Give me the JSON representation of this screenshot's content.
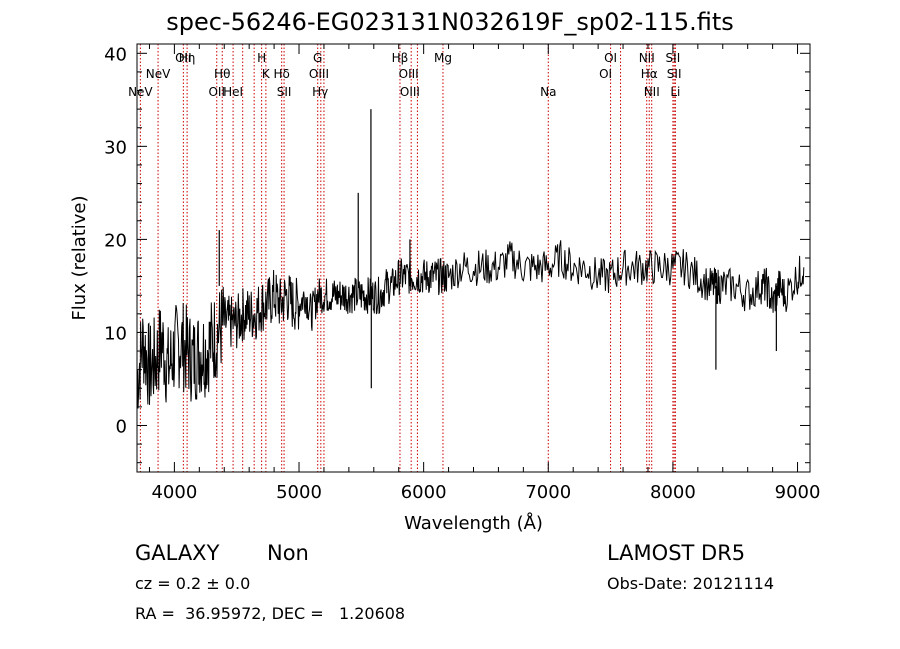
{
  "title": "spec-56246-EG023131N032619F_sp02-115.fits",
  "chart_data": {
    "type": "line",
    "title": "spec-56246-EG023131N032619F_sp02-115.fits",
    "xlabel": "Wavelength (Å)",
    "ylabel": "Flux (relative)",
    "xlim": [
      3700,
      9100
    ],
    "ylim": [
      -5,
      41
    ],
    "xticks": [
      4000,
      5000,
      6000,
      7000,
      8000,
      9000
    ],
    "yticks": [
      0,
      10,
      20,
      30,
      40
    ],
    "grid": false,
    "series": [
      {
        "x": [
          3700,
          3750,
          3800,
          3850,
          3900,
          3950,
          4000,
          4050,
          4100,
          4150,
          4200,
          4250,
          4300,
          4350,
          4400,
          4450,
          4500,
          4550,
          4600,
          4650,
          4700,
          4750,
          4800,
          4850,
          4900,
          4950,
          5000,
          5050,
          5100,
          5150,
          5200,
          5250,
          5300,
          5350,
          5400,
          5450,
          5500,
          5550,
          5600,
          5650,
          5700,
          5750,
          5800,
          5850,
          5900,
          5950,
          6000,
          6050,
          6100,
          6150,
          6200,
          6300,
          6400,
          6500,
          6600,
          6700,
          6800,
          6900,
          7000,
          7100,
          7200,
          7300,
          7400,
          7500,
          7600,
          7700,
          7800,
          7900,
          8000,
          8100,
          8200,
          8300,
          8350,
          8400,
          8500,
          8600,
          8700,
          8750,
          8800,
          8850,
          8900,
          9000,
          9050
        ],
        "y": [
          5,
          9,
          6,
          7,
          9,
          6,
          8,
          9,
          8,
          7,
          8,
          8,
          9,
          10,
          11,
          11,
          11,
          12,
          12,
          12,
          13,
          13,
          14,
          13,
          14,
          13,
          13,
          14,
          12,
          14,
          14,
          14,
          14,
          14,
          14,
          14,
          14,
          14,
          14,
          14,
          15,
          15,
          16,
          16,
          16,
          16,
          16,
          16,
          16,
          16,
          16,
          17,
          17,
          17,
          17,
          18,
          17,
          17,
          17,
          18,
          17,
          17,
          16,
          16,
          17,
          17,
          17,
          17,
          17,
          17,
          16,
          15,
          15,
          15,
          15,
          14,
          15,
          15,
          13,
          15,
          14,
          16,
          17
        ]
      }
    ],
    "spikes": [
      {
        "x": 4360,
        "y": 21
      },
      {
        "x": 5475,
        "y": 25
      },
      {
        "x": 5577,
        "y": 34
      },
      {
        "x": 5890,
        "y": 20
      },
      {
        "x": 5580,
        "y": 4
      },
      {
        "x": 8345,
        "y": 6
      },
      {
        "x": 8830,
        "y": 8
      }
    ],
    "line_labels": [
      {
        "wavelength": 3727,
        "text": "NeV",
        "row": 3
      },
      {
        "wavelength": 3869,
        "text": "NeV",
        "row": 2
      },
      {
        "wavelength": 4072,
        "text": "OII",
        "row": 1
      },
      {
        "wavelength": 4102,
        "text": "Hη",
        "row": 1
      },
      {
        "wavelength": 4340,
        "text": "OII",
        "row": 3
      },
      {
        "wavelength": 4384,
        "text": "Hθ",
        "row": 2
      },
      {
        "wavelength": 4471,
        "text": "HeI",
        "row": 3
      },
      {
        "wavelength": 4700,
        "text": "H",
        "row": 1
      },
      {
        "wavelength": 4734,
        "text": "K",
        "row": 2
      },
      {
        "wavelength": 4861,
        "text": "Hδ",
        "row": 2
      },
      {
        "wavelength": 4880,
        "text": "SII",
        "row": 3
      },
      {
        "wavelength": 5150,
        "text": "G",
        "row": 1
      },
      {
        "wavelength": 5160,
        "text": "OIII",
        "row": 2
      },
      {
        "wavelength": 5170,
        "text": "Hγ",
        "row": 3
      },
      {
        "wavelength": 5810,
        "text": "Hβ",
        "row": 1
      },
      {
        "wavelength": 5880,
        "text": "OIII",
        "row": 2
      },
      {
        "wavelength": 5890,
        "text": "OIII",
        "row": 3
      },
      {
        "wavelength": 6155,
        "text": "Mg",
        "row": 1
      },
      {
        "wavelength": 7000,
        "text": "Na",
        "row": 3
      },
      {
        "wavelength": 7500,
        "text": "OI",
        "row": 1
      },
      {
        "wavelength": 7460,
        "text": "OI",
        "row": 2
      },
      {
        "wavelength": 7790,
        "text": "NII",
        "row": 1
      },
      {
        "wavelength": 7810,
        "text": "Hα",
        "row": 2
      },
      {
        "wavelength": 7830,
        "text": "NII",
        "row": 3
      },
      {
        "wavelength": 8000,
        "text": "SII",
        "row": 1
      },
      {
        "wavelength": 8010,
        "text": "SII",
        "row": 2
      },
      {
        "wavelength": 8020,
        "text": "Li",
        "row": 3
      }
    ],
    "line_markers": [
      3727,
      3869,
      4072,
      4102,
      4340,
      4384,
      4471,
      4548,
      4640,
      4700,
      4734,
      4861,
      4880,
      5150,
      5175,
      5200,
      5810,
      5900,
      5950,
      6155,
      7000,
      7500,
      7580,
      7790,
      7810,
      7830,
      8000,
      8010,
      8020
    ],
    "colors": {
      "spectrum": "#000000",
      "markers": "#cc0000",
      "axes": "#000000"
    }
  },
  "info": {
    "class": "GALAXY",
    "subclass": "Non",
    "survey": "LAMOST DR5",
    "cz": "cz = 0.2 ± 0.0",
    "obs_date": "Obs-Date: 20121114",
    "coords": "RA =  36.95972, DEC =   1.20608"
  }
}
